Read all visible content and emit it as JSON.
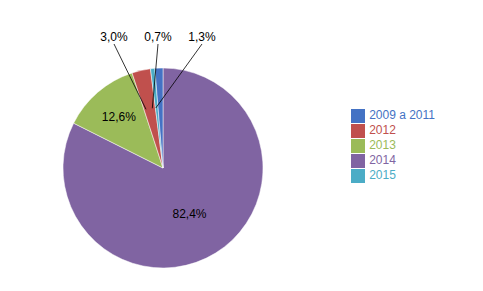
{
  "chart_data": {
    "type": "pie",
    "categories": [
      "2014",
      "2013",
      "2012",
      "2015",
      "2009 a 2011"
    ],
    "values": [
      82.4,
      12.6,
      3.0,
      0.7,
      1.3
    ],
    "value_labels": [
      "82,4%",
      "12,6%",
      "3,0%",
      "0,7%",
      "1,3%"
    ],
    "colors": [
      "#8064A2",
      "#9BBB59",
      "#C0504D",
      "#4BACC6",
      "#4472C4"
    ],
    "data_labels": true,
    "legend": "right"
  }
}
